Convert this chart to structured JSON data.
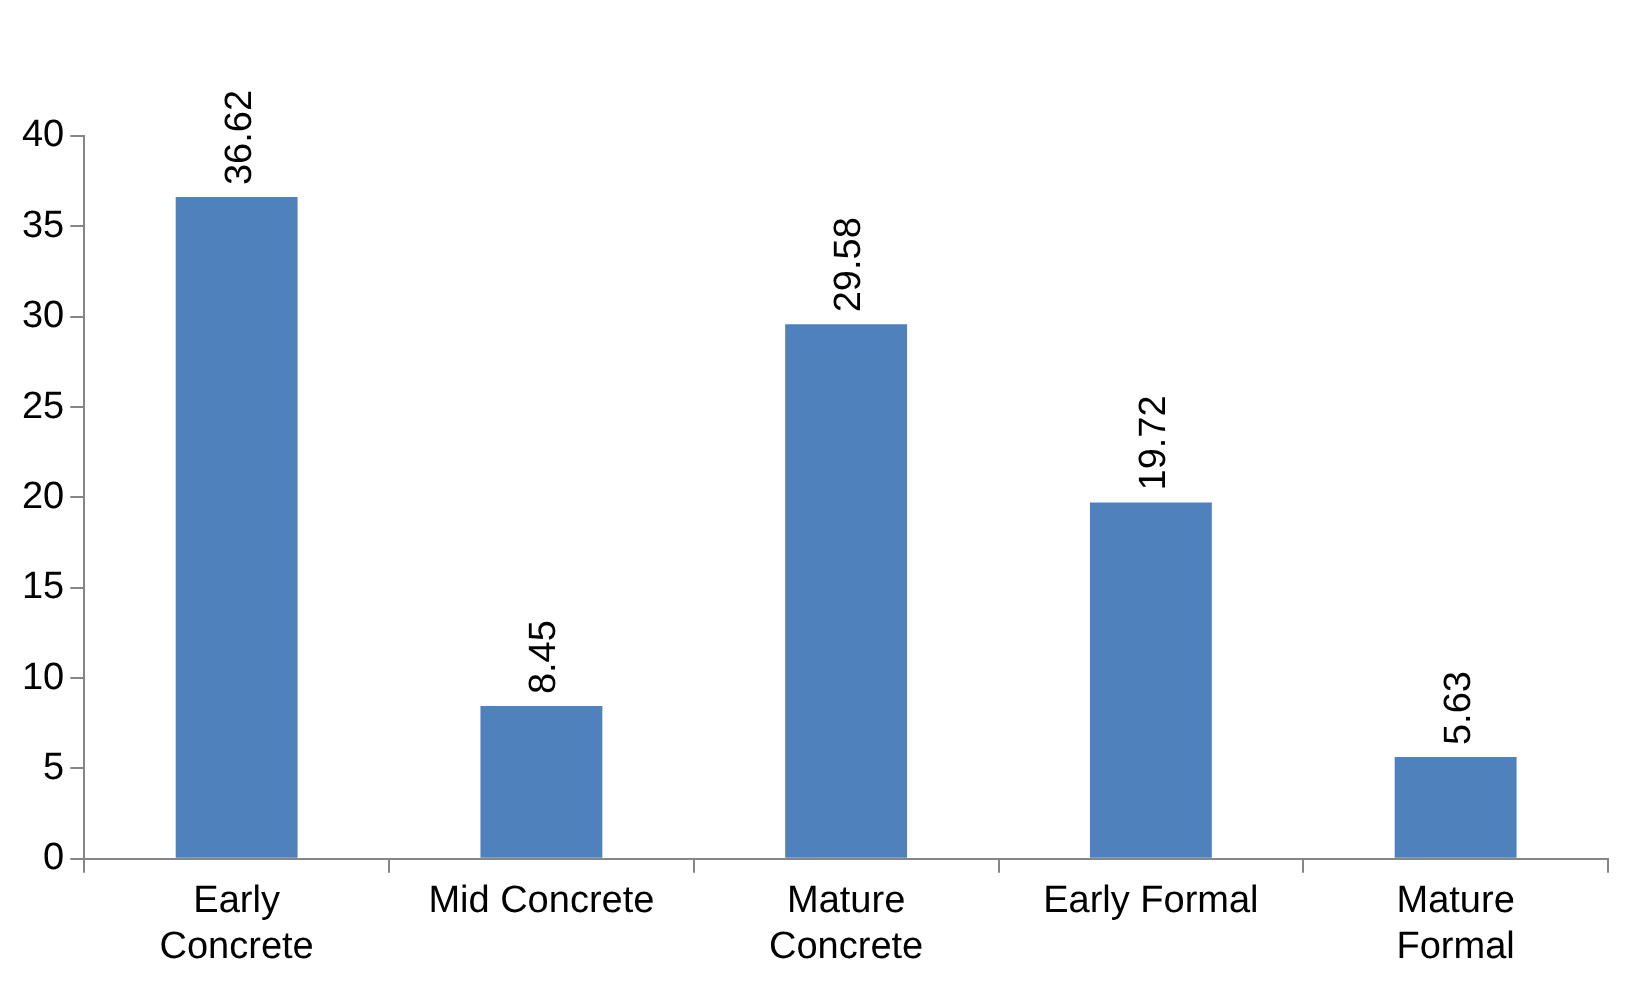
{
  "chart_data": {
    "type": "bar",
    "categories": [
      "Early Concrete",
      "Mid Concrete",
      "Mature Concrete",
      "Early Formal",
      "Mature Formal"
    ],
    "values": [
      36.62,
      8.45,
      29.58,
      19.72,
      5.63
    ],
    "color": "#4f81bd",
    "ylim": [
      0,
      40
    ],
    "yticks": [
      0,
      5,
      10,
      15,
      20,
      25,
      30,
      35,
      40
    ],
    "grid": false,
    "legend": false,
    "data_labels": true
  }
}
